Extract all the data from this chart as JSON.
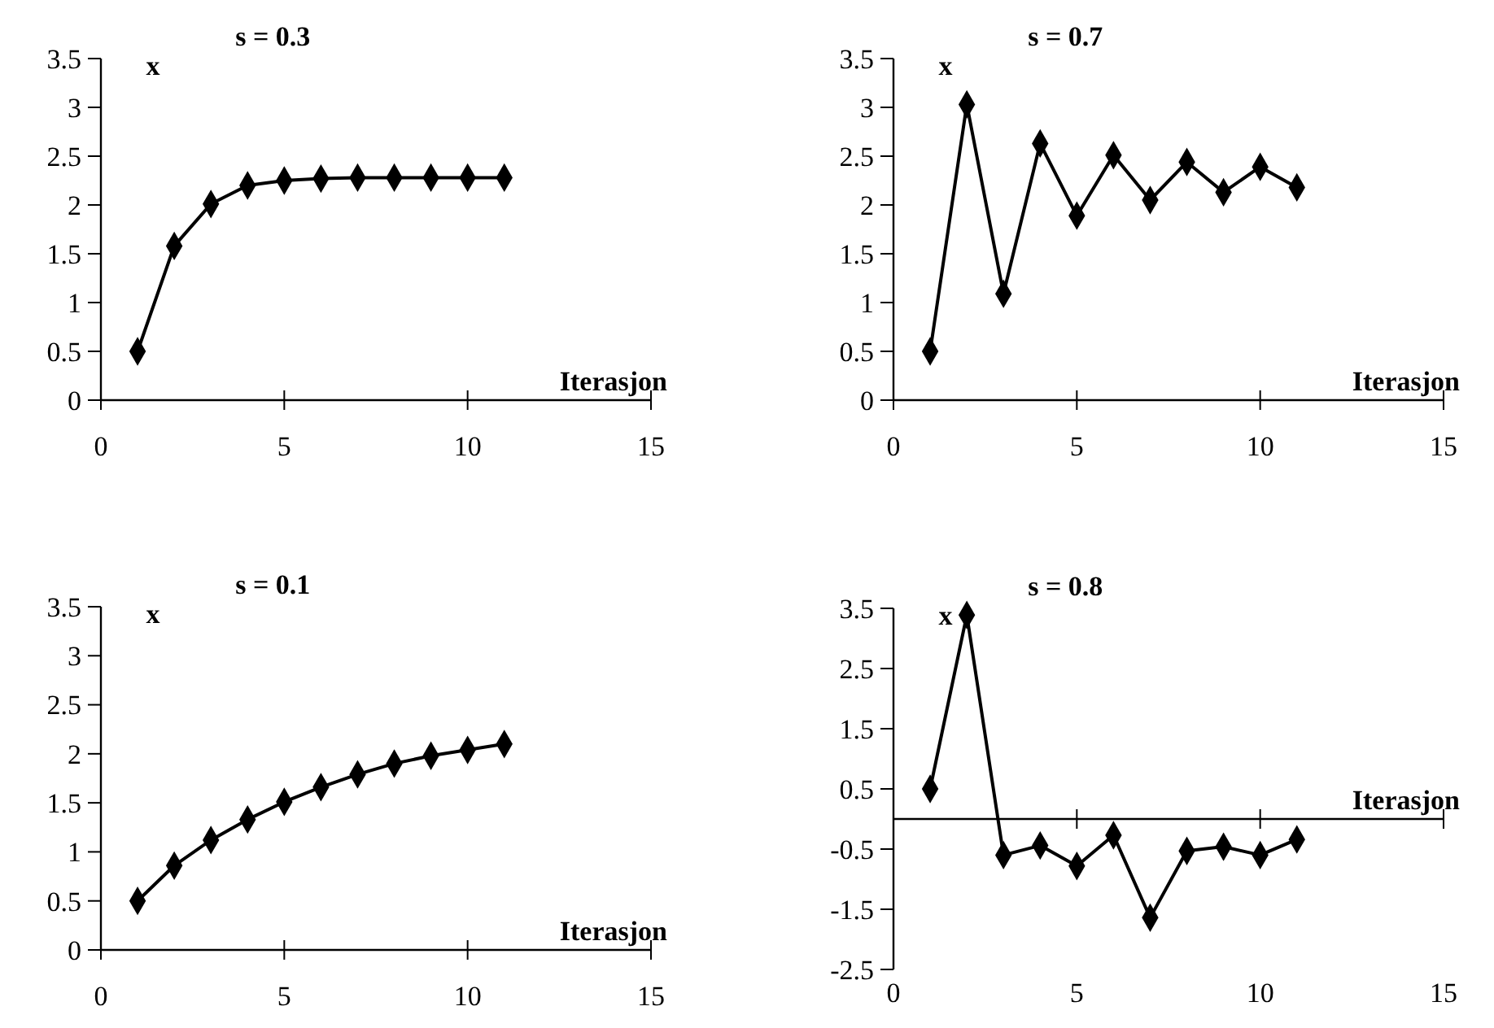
{
  "chart_data": [
    {
      "type": "line",
      "title": "s = 0.3",
      "xlabel": "Iterasjon",
      "ylabel": "x",
      "x": [
        1,
        2,
        3,
        4,
        5,
        6,
        7,
        8,
        9,
        10,
        11
      ],
      "series": [
        {
          "color": "#000000",
          "values": [
            0.5,
            1.58,
            2.01,
            2.2,
            2.25,
            2.27,
            2.28,
            2.28,
            2.28,
            2.28,
            2.28
          ]
        }
      ],
      "xlim": [
        0,
        15
      ],
      "xticks": [
        0,
        5,
        10,
        15
      ],
      "ylim": [
        0,
        3.5
      ],
      "yticks": [
        0,
        0.5,
        1,
        1.5,
        2,
        2.5,
        3,
        3.5
      ],
      "grid": false,
      "marker": "diamond",
      "line_style": "solid"
    },
    {
      "type": "line",
      "title": "s = 0.7",
      "xlabel": "Iterasjon",
      "ylabel": "x",
      "x": [
        1,
        2,
        3,
        4,
        5,
        6,
        7,
        8,
        9,
        10,
        11
      ],
      "series": [
        {
          "color": "#000000",
          "values": [
            0.5,
            3.03,
            1.09,
            2.63,
            1.89,
            2.51,
            2.05,
            2.44,
            2.13,
            2.39,
            2.18
          ]
        }
      ],
      "xlim": [
        0,
        15
      ],
      "xticks": [
        0,
        5,
        10,
        15
      ],
      "ylim": [
        0,
        3.5
      ],
      "yticks": [
        0,
        0.5,
        1,
        1.5,
        2,
        2.5,
        3,
        3.5
      ],
      "grid": false,
      "marker": "diamond",
      "line_style": "solid"
    },
    {
      "type": "line",
      "title": "s = 0.1",
      "xlabel": "Iterasjon",
      "ylabel": "x",
      "x": [
        1,
        2,
        3,
        4,
        5,
        6,
        7,
        8,
        9,
        10,
        11
      ],
      "series": [
        {
          "color": "#000000",
          "values": [
            0.5,
            0.86,
            1.12,
            1.33,
            1.51,
            1.66,
            1.79,
            1.9,
            1.98,
            2.04,
            2.1
          ]
        }
      ],
      "xlim": [
        0,
        15
      ],
      "xticks": [
        0,
        5,
        10,
        15
      ],
      "ylim": [
        0,
        3.5
      ],
      "yticks": [
        0,
        0.5,
        1,
        1.5,
        2,
        2.5,
        3,
        3.5
      ],
      "grid": false,
      "marker": "diamond",
      "line_style": "solid"
    },
    {
      "type": "line",
      "title": "s = 0.8",
      "xlabel": "Iterasjon",
      "ylabel": "x",
      "x": [
        1,
        2,
        3,
        4,
        5,
        6,
        7,
        8,
        9,
        10,
        11
      ],
      "series": [
        {
          "color": "#000000",
          "values": [
            0.5,
            3.39,
            -0.6,
            -0.44,
            -0.78,
            -0.27,
            -1.64,
            -0.53,
            -0.46,
            -0.6,
            -0.34
          ]
        }
      ],
      "xlim": [
        0,
        15
      ],
      "xticks": [
        0,
        5,
        10,
        15
      ],
      "ylim": [
        -2.5,
        3.5
      ],
      "yticks": [
        -2.5,
        -1.5,
        -0.5,
        0.5,
        1.5,
        2.5,
        3.5
      ],
      "grid": false,
      "marker": "diamond",
      "line_style": "solid"
    }
  ]
}
